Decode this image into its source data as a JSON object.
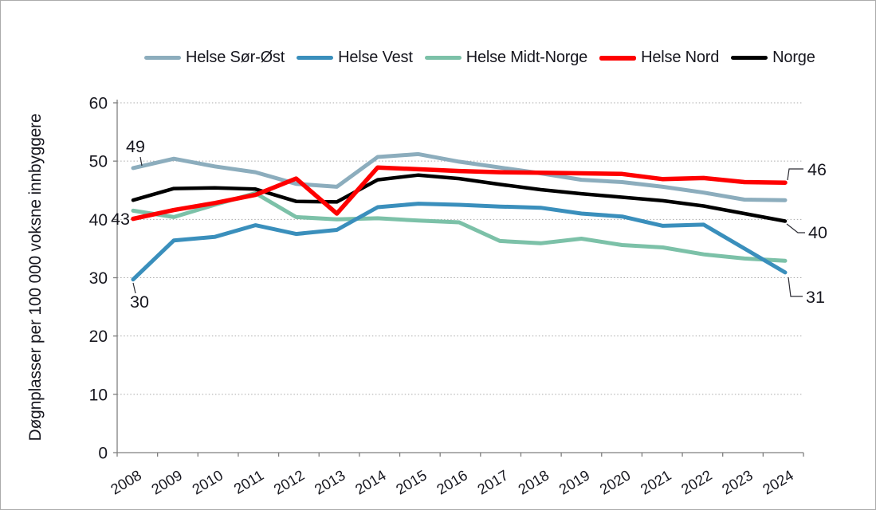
{
  "figure": {
    "background": "#ffffff",
    "border_color": "#ababab",
    "text_color": "#3c3c4c",
    "grid_color": "#a9a9a9",
    "axis_color": "#7f7f7f"
  },
  "chart_data": {
    "type": "line",
    "title": "",
    "ylabel": "Døgnplasser per 100 000 voksne innbyggere",
    "xlabel": "",
    "x": [
      2008,
      2009,
      2010,
      2011,
      2012,
      2013,
      2014,
      2015,
      2016,
      2017,
      2018,
      2019,
      2020,
      2021,
      2022,
      2023,
      2024
    ],
    "ylim": [
      0,
      60
    ],
    "yticks": [
      0,
      10,
      20,
      30,
      40,
      50,
      60
    ],
    "grid": "horizontal-dotted",
    "legend_position": "top",
    "series": [
      {
        "name": "Helse Sør-Øst",
        "color": "#8cadbd",
        "line_width": 5,
        "values": [
          48.8,
          50.4,
          49.1,
          48.1,
          46.1,
          45.6,
          50.7,
          51.2,
          49.9,
          48.9,
          47.9,
          46.8,
          46.4,
          45.6,
          44.6,
          43.4,
          43.3
        ]
      },
      {
        "name": "Helse Vest",
        "color": "#3a8fbc",
        "line_width": 5,
        "values": [
          29.7,
          36.4,
          37.0,
          39.0,
          37.5,
          38.2,
          42.1,
          42.7,
          42.5,
          42.2,
          42.0,
          41.0,
          40.5,
          38.9,
          39.1,
          35.0,
          30.9
        ]
      },
      {
        "name": "Helse Midt-Norge",
        "color": "#7cc1a8",
        "line_width": 5,
        "values": [
          41.5,
          40.4,
          42.5,
          44.5,
          40.4,
          40.0,
          40.2,
          39.8,
          39.5,
          36.3,
          35.9,
          36.7,
          35.6,
          35.2,
          34.0,
          33.3,
          32.9
        ]
      },
      {
        "name": "Helse Nord",
        "color": "#fe0000",
        "line_width": 5.5,
        "values": [
          40.1,
          41.6,
          42.8,
          44.2,
          47.0,
          41.0,
          48.9,
          48.6,
          48.3,
          48.1,
          48.0,
          47.9,
          47.8,
          46.9,
          47.1,
          46.4,
          46.3
        ]
      },
      {
        "name": "Norge",
        "color": "#000000",
        "line_width": 4.5,
        "values": [
          43.3,
          45.3,
          45.4,
          45.2,
          43.1,
          43.0,
          46.8,
          47.6,
          47.0,
          46.0,
          45.1,
          44.4,
          43.8,
          43.2,
          42.3,
          41.0,
          39.7
        ]
      }
    ],
    "annotations": [
      {
        "label": "49",
        "series": "Helse Sør-Øst",
        "year": 2008
      },
      {
        "label": "43",
        "series": "Norge",
        "year": 2008
      },
      {
        "label": "30",
        "series": "Helse Vest",
        "year": 2008
      },
      {
        "label": "46",
        "series": "Helse Nord",
        "year": 2024
      },
      {
        "label": "40",
        "series": "Norge",
        "year": 2024
      },
      {
        "label": "31",
        "series": "Helse Vest",
        "year": 2024
      }
    ]
  }
}
